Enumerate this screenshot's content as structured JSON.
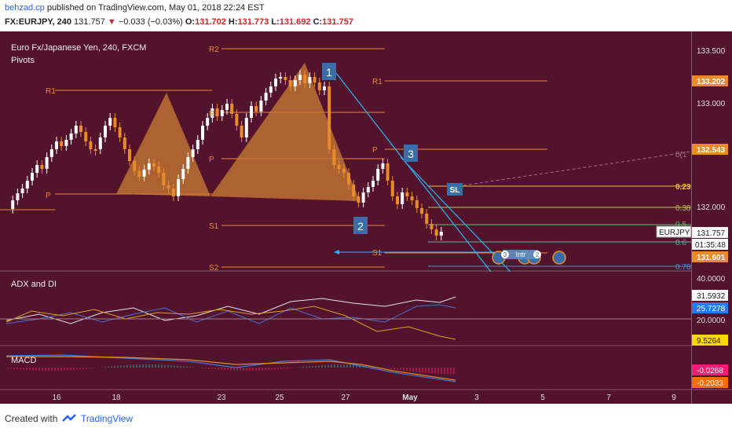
{
  "header": {
    "author": "behzad.cp",
    "published": " published on TradingView.com, May 01, 2018 22:24 EST",
    "symbol": "FX:EURJPY, 240",
    "price": "131.757",
    "change_arrow": "▼",
    "change": "−0.033 (−0.03%)",
    "o_label": "O:",
    "o": "131.702",
    "h_label": "H:",
    "h": "131.773",
    "l_label": "L:",
    "l": "131.692",
    "c_label": "C:",
    "c": "131.757"
  },
  "main_pane": {
    "title": "Euro Fx/Japanese Yen, 240, FXCM",
    "indicator": "Pivots",
    "pivot_labels": {
      "r2": "R2",
      "r1_a": "R1",
      "r1_b": "R1",
      "r1_c": "R1",
      "p_a": "P",
      "p_b": "P",
      "p_c": "P",
      "s1_a": "S1",
      "s1_b": "S1",
      "s2": "S2"
    },
    "wave_labels": [
      "1",
      "2",
      "3"
    ],
    "sl_label": "SL",
    "fib_labels": [
      "0(1",
      "0.23",
      "0.38",
      "0.5",
      "0.6",
      "0.78"
    ],
    "price_scale": [
      "133.500",
      "133.000",
      "132.000"
    ],
    "scale_badges": {
      "r1": "133.202",
      "last_pivot": "132.543",
      "symbol": "EURJPY",
      "last_price": "131.757",
      "countdown": "01:35:48",
      "s1": "131.601"
    },
    "scale_badge_colors": {
      "r1": "#e98a2b",
      "last_pivot": "#e98a2b",
      "last_price_bg": "#ffffff",
      "s1": "#e98a2b"
    },
    "event_markers": [
      "3",
      "2"
    ],
    "event_text": "Intr"
  },
  "adx_pane": {
    "title": "ADX and DI",
    "scale": [
      "40.0000",
      "20.0000"
    ],
    "badges": {
      "plus_di": "31.5932",
      "minus_di": "25.7278",
      "adx": "9.5264"
    },
    "badge_colors": {
      "plus_di": "#ffffff",
      "minus_di": "#2979ff",
      "adx": "#ffd600"
    }
  },
  "macd_pane": {
    "title": "MACD",
    "badges": {
      "hist": "-0.0268",
      "signal": "-0.2033"
    },
    "badge_colors": {
      "hist": "#ff1a75",
      "signal": "#ff6d00"
    }
  },
  "time_axis": [
    "16",
    "18",
    "23",
    "25",
    "27",
    "May",
    "3",
    "5",
    "7",
    "9"
  ],
  "footer": {
    "created": "Created with",
    "brand": "TradingView"
  },
  "colors": {
    "background": "#53132c",
    "candle_up": "#ffffff",
    "candle_down": "#e98a2b",
    "pivot_line": "#e98a2b",
    "pattern_fill": "#c97d33",
    "trendline": "#29b6f6"
  }
}
